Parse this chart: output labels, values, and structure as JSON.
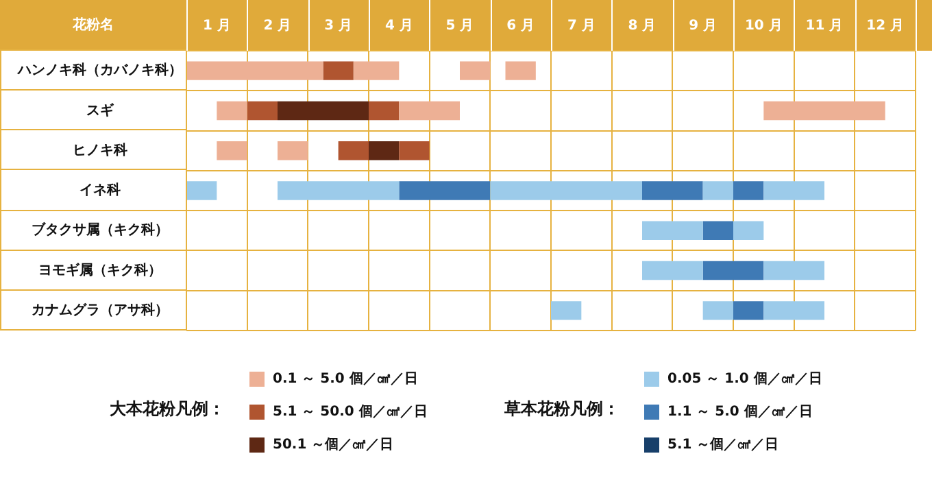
{
  "chart_data": {
    "type": "bar",
    "orientation": "horizontal",
    "ylabel": "花粉名",
    "categories": [
      "ハンノキ科（カバノキ科）",
      "スギ",
      "ヒノキ科",
      "イネ科",
      "ブタクサ属（キク科）",
      "ヨモギ属（キク科）",
      "カナムグラ（アサ科）"
    ],
    "xlim": [
      0,
      12
    ],
    "xticks": [
      {
        "value": 0,
        "label": null
      },
      {
        "value": 0.5,
        "label": "1 月"
      },
      {
        "value": 1,
        "label": null
      },
      {
        "value": 1.5,
        "label": "2 月"
      },
      {
        "value": 2,
        "label": null
      },
      {
        "value": 2.5,
        "label": "3 月"
      },
      {
        "value": 3,
        "label": null
      },
      {
        "value": 3.5,
        "label": "4 月"
      },
      {
        "value": 4,
        "label": null
      },
      {
        "value": 4.5,
        "label": "5 月"
      },
      {
        "value": 5,
        "label": null
      },
      {
        "value": 5.5,
        "label": "6 月"
      },
      {
        "value": 6,
        "label": null
      },
      {
        "value": 6.5,
        "label": "7 月"
      },
      {
        "value": 7,
        "label": null
      },
      {
        "value": 7.5,
        "label": "8 月"
      },
      {
        "value": 8,
        "label": null
      },
      {
        "value": 8.5,
        "label": "9 月"
      },
      {
        "value": 9,
        "label": null
      },
      {
        "value": 9.5,
        "label": "10 月"
      },
      {
        "value": 10,
        "label": null
      },
      {
        "value": 10.5,
        "label": "11 月"
      },
      {
        "value": 11,
        "label": null
      },
      {
        "value": 11.5,
        "label": "12 月"
      },
      {
        "value": 12,
        "label": null
      }
    ],
    "series": [
      {
        "name": "0.1 ～ 5.0 個／㎠／日",
        "color": "#edb095",
        "base": [
          0,
          0.5,
          0.5,
          null,
          null,
          null,
          null
        ],
        "values": [
          2.25,
          0.5,
          0.5,
          null,
          null,
          null,
          null
        ]
      },
      {
        "color": "#edb095",
        "base": [
          2.75,
          3.5,
          1.5,
          null,
          null,
          null,
          null
        ],
        "values": [
          0.75,
          1,
          0.5,
          null,
          null,
          null,
          null
        ]
      },
      {
        "color": "#edb095",
        "base": [
          4.5,
          9.5,
          null,
          null,
          null,
          null,
          null
        ],
        "values": [
          0.5,
          2,
          null,
          null,
          null,
          null,
          null
        ]
      },
      {
        "color": "#edb095",
        "base": [
          5.25,
          null,
          null,
          null,
          null,
          null,
          null
        ],
        "values": [
          0.5,
          null,
          null,
          null,
          null,
          null,
          null
        ]
      },
      {
        "name": "5.1 ～ 50.0 個／㎠／日",
        "color": "#b05530",
        "base": [
          2.25,
          1,
          2.5,
          null,
          null,
          null,
          null
        ],
        "values": [
          0.5,
          0.5,
          0.5,
          null,
          null,
          null,
          null
        ]
      },
      {
        "color": "#b05530",
        "base": [
          null,
          3,
          3.5,
          null,
          null,
          null,
          null
        ],
        "values": [
          null,
          0.5,
          0.5,
          null,
          null,
          null,
          null
        ]
      },
      {
        "name": "50.1 ～個／㎠／日",
        "color": "#5e2814",
        "base": [
          null,
          1.5,
          3,
          null,
          null,
          null,
          null
        ],
        "values": [
          null,
          1.5,
          0.5,
          null,
          null,
          null,
          null
        ]
      },
      {
        "name": "0.05 ～ 1.0 個／㎠／日",
        "color": "#9ccbea",
        "base": [
          null,
          null,
          null,
          0,
          7.5,
          7.5,
          6
        ],
        "values": [
          null,
          null,
          null,
          0.5,
          1,
          1,
          0.5
        ]
      },
      {
        "color": "#9ccbea",
        "base": [
          null,
          null,
          null,
          1.5,
          9,
          9.5,
          8.5
        ],
        "values": [
          null,
          null,
          null,
          2,
          0.5,
          1,
          0.5
        ]
      },
      {
        "color": "#9ccbea",
        "base": [
          null,
          null,
          null,
          5,
          null,
          null,
          9.5
        ],
        "values": [
          null,
          null,
          null,
          2.5,
          null,
          null,
          1
        ]
      },
      {
        "color": "#9ccbea",
        "base": [
          null,
          null,
          null,
          8.5,
          null,
          null,
          null
        ],
        "values": [
          null,
          null,
          null,
          0.5,
          null,
          null,
          null
        ]
      },
      {
        "color": "#9ccbea",
        "base": [
          null,
          null,
          null,
          9.5,
          null,
          null,
          null
        ],
        "values": [
          null,
          null,
          null,
          1,
          null,
          null,
          null
        ]
      },
      {
        "name": "1.1 ～ 5.0 個／㎠／日",
        "color": "#3f7ab5",
        "base": [
          null,
          null,
          null,
          3.5,
          8.5,
          8.5,
          9
        ],
        "values": [
          null,
          null,
          null,
          1.5,
          0.5,
          1,
          0.5
        ]
      },
      {
        "color": "#3f7ab5",
        "base": [
          null,
          null,
          null,
          7.5,
          null,
          null,
          null
        ],
        "values": [
          null,
          null,
          null,
          1,
          null,
          null,
          null
        ]
      },
      {
        "color": "#3f7ab5",
        "base": [
          null,
          null,
          null,
          9,
          null,
          null,
          null
        ],
        "values": [
          null,
          null,
          null,
          0.5,
          null,
          null,
          null
        ]
      },
      {
        "name": "5.1 ～個／㎠／日",
        "color": "#173f6a",
        "base": [
          null,
          null,
          null,
          null,
          null,
          null,
          null
        ],
        "values": [
          null,
          null,
          null,
          null,
          null,
          null,
          null
        ]
      }
    ],
    "annotations": [
      "大本花粉凡例：",
      "草本花粉凡例："
    ],
    "grid": true,
    "legend": "bottom"
  }
}
